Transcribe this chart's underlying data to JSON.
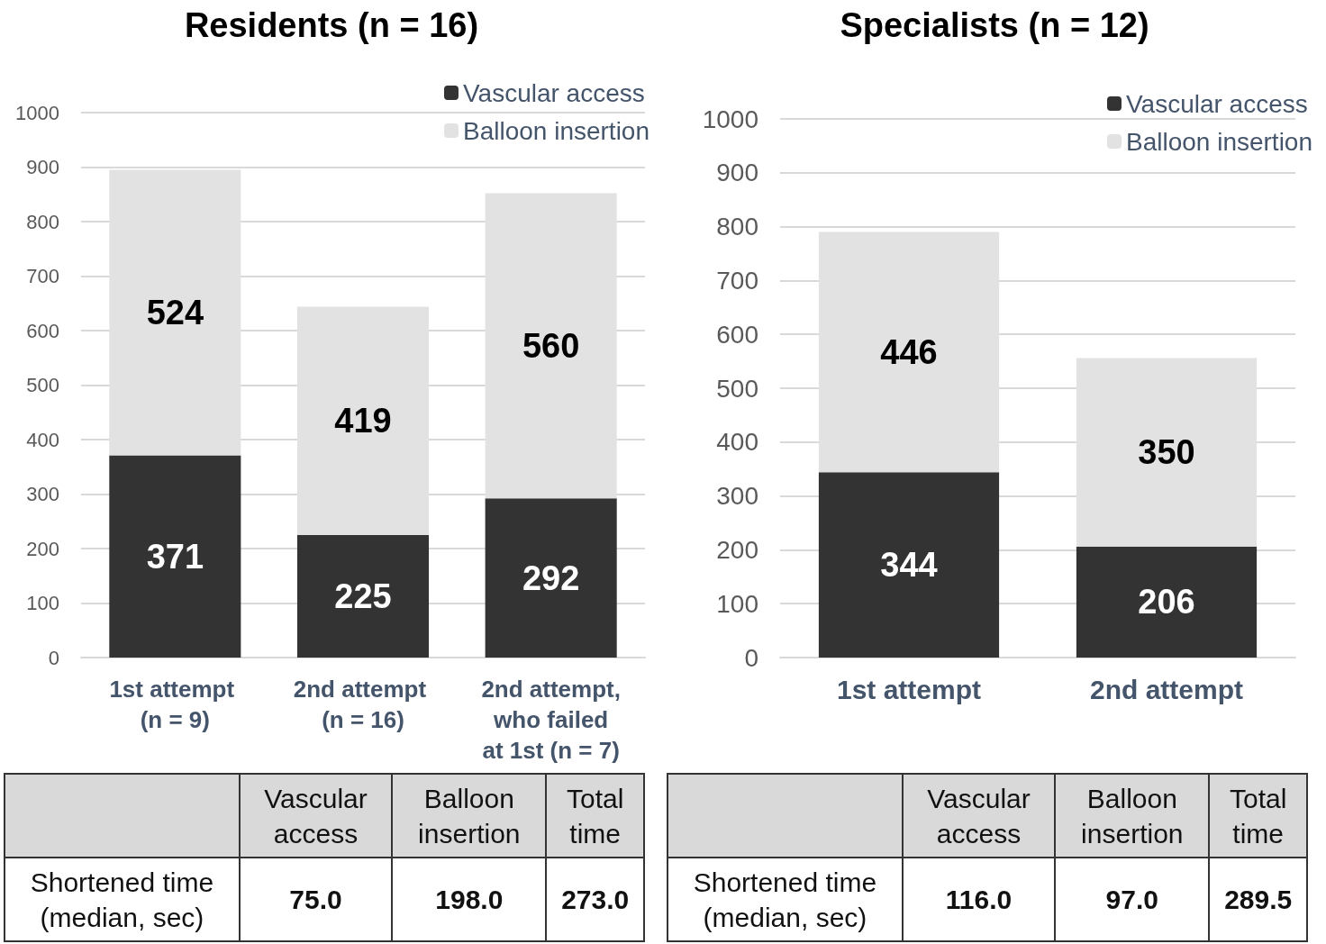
{
  "chart_data": [
    {
      "type": "bar",
      "title": "Residents (n = 16)",
      "categories": [
        "1st attempt (n = 9)",
        "2nd attempt (n = 16)",
        "2nd attempt, who failed at 1st (n = 7)"
      ],
      "stacked": true,
      "data_labels": true,
      "grid": "y",
      "legend": "top right",
      "ylim": [
        0,
        1000
      ],
      "yticks": [
        0,
        100,
        200,
        300,
        400,
        500,
        600,
        700,
        800,
        900,
        1000
      ],
      "series": [
        {
          "name": "Vascular access",
          "color": "#333333",
          "values": [
            371,
            225,
            292
          ]
        },
        {
          "name": "Balloon insertion",
          "color": "#e2e2e2",
          "values": [
            524,
            419,
            560
          ]
        }
      ],
      "annotations": [
        "Vascular access",
        "Balloon insertion",
        "Total time",
        "Shortened time (median, sec)",
        "75.0",
        "198.0",
        "273.0"
      ]
    },
    {
      "type": "bar",
      "title": "Specialists (n = 12)",
      "categories": [
        "1st attempt",
        "2nd attempt"
      ],
      "stacked": true,
      "data_labels": true,
      "grid": "y",
      "legend": "top right",
      "ylim": [
        0,
        1000
      ],
      "yticks": [
        0,
        100,
        200,
        300,
        400,
        500,
        600,
        700,
        800,
        900,
        1000
      ],
      "series": [
        {
          "name": "Vascular access",
          "color": "#333333",
          "values": [
            344,
            206
          ]
        },
        {
          "name": "Balloon insertion",
          "color": "#e2e2e2",
          "values": [
            446,
            350
          ]
        }
      ],
      "annotations": [
        "Vascular access",
        "Balloon insertion",
        "Total time",
        "Shortened time (median, sec)",
        "116.0",
        "97.0",
        "289.5"
      ]
    }
  ]
}
